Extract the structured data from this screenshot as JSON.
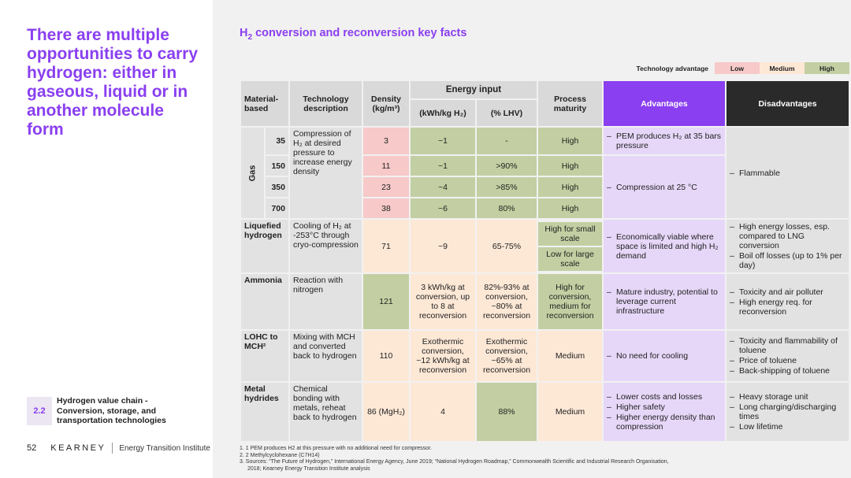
{
  "left": {
    "headline": "There are multiple opportunities to carry hydrogen: either in gaseous, liquid or in another molecule form",
    "section_number": "2.2",
    "section_title": "Hydrogen value chain - Conversion, storage, and transportation technologies",
    "page_number": "52",
    "brand": "KEARNEY",
    "institute": "Energy Transition Institute"
  },
  "right": {
    "title_pre": "H",
    "title_sub": "2",
    "title_post": " conversion and reconversion key facts"
  },
  "legend": {
    "label": "Technology advantage",
    "low": "Low",
    "medium": "Medium",
    "high": "High",
    "colors": {
      "low": "#f7c9c9",
      "medium": "#fde8d6",
      "high": "#c3cfa2",
      "advantages": "#8a3ff0",
      "disadvantages": "#2a2a2a"
    }
  },
  "headers": {
    "material": "Material-based",
    "technology": "Technology description",
    "density": "Density (kg/m³)",
    "energy_input": "Energy input",
    "kwh": "(kWh/kg H₂)",
    "lhv": "(% LHV)",
    "maturity": "Process maturity",
    "advantages": "Advantages",
    "disadvantages": "Disadvantages"
  },
  "gas": {
    "label": "Gas",
    "description": "Compression of H₂ at desired pressure to increase energy density",
    "rows": [
      {
        "pressure": "35",
        "density": "3",
        "kwh": "~1",
        "lhv": "-",
        "maturity": "High"
      },
      {
        "pressure": "150",
        "density": "11",
        "kwh": "~1",
        "lhv": ">90%",
        "maturity": "High"
      },
      {
        "pressure": "350",
        "density": "23",
        "kwh": "~4",
        "lhv": ">85%",
        "maturity": "High"
      },
      {
        "pressure": "700",
        "density": "38",
        "kwh": "~6",
        "lhv": "80%",
        "maturity": "High"
      }
    ],
    "adv_1": "PEM produces H₂ at 35 bars pressure",
    "adv_2": "Compression at 25 °C",
    "dis_1": "Flammable"
  },
  "liquefied": {
    "label": "Liquefied hydrogen",
    "description": "Cooling of H₂ at -253°C through cryo-compression",
    "density": "71",
    "kwh": "~9",
    "lhv": "65-75%",
    "maturity_1": "High for small scale",
    "maturity_2": "Low for large scale",
    "adv_1": "Economically viable where space is limited and high H₂ demand",
    "dis_1": "High energy losses, esp. compared to LNG conversion",
    "dis_2": "Boil off losses (up to 1% per day)"
  },
  "ammonia": {
    "label": "Ammonia",
    "description": "Reaction with nitrogen",
    "density": "121",
    "kwh": "3 kWh/kg at conversion, up to 8 at reconversion",
    "lhv": "82%-93% at conversion, ~80% at reconversion",
    "maturity": "High for conversion, medium for reconversion",
    "adv_1": "Mature industry, potential to leverage current infrastructure",
    "dis_1": "Toxicity and air polluter",
    "dis_2": "High energy req. for reconversion"
  },
  "lohc": {
    "label": "LOHC to MCH²",
    "description": "Mixing with MCH and converted back to hydrogen",
    "density": "110",
    "kwh": "Exothermic conversion, ~12 kWh/kg at reconversion",
    "lhv": "Exothermic conversion, ~65% at reconversion",
    "maturity": "Medium",
    "adv_1": "No need for cooling",
    "dis_1": "Toxicity and flammability of toluene",
    "dis_2": "Price of toluene",
    "dis_3": "Back-shipping of toluene"
  },
  "metal": {
    "label": "Metal hydrides",
    "description": "Chemical bonding with metals, reheat back to hydrogen",
    "density": "86 (MgH₂)",
    "kwh": "4",
    "lhv": "88%",
    "maturity": "Medium",
    "adv_1": "Lower costs and losses",
    "adv_2": "Higher safety",
    "adv_3": "Higher energy density than compression",
    "dis_1": "Heavy storage unit",
    "dis_2": "Long charging/discharging times",
    "dis_3": "Low lifetime"
  },
  "notes": {
    "n1": "1.  1 PEM produces H2 at this pressure with no additional need for compressor.",
    "n2": "2.  2 Methylcyclohexane (C7H14)",
    "n3": "3.  Sources: “The Future of Hydrogen,” International Energy Agency, June 2019; “National Hydrogen Roadmap,” Commonwealth Scientific and Industrial Research Organisation, 2018; Kearney Energy Transition Institute analysis"
  }
}
